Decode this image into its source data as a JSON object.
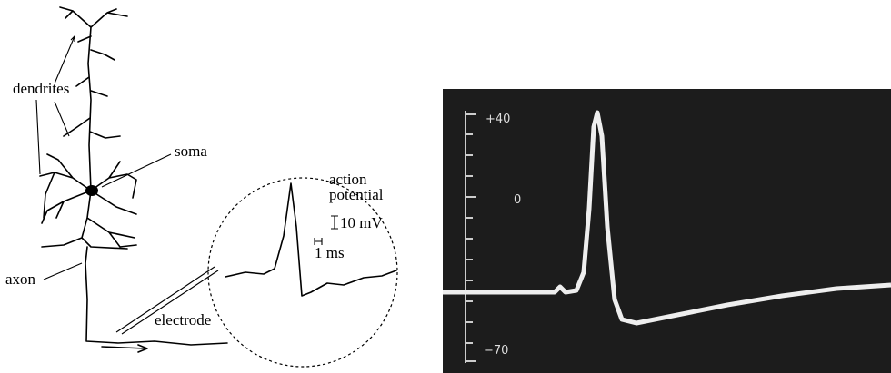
{
  "left_panel": {
    "labels": {
      "dendrites": "dendrites",
      "soma": "soma",
      "axon": "axon",
      "action": "action",
      "potential": "potential",
      "voltage_scale": "10 mV",
      "time_scale": "1 ms",
      "electrode": "electrode"
    }
  },
  "right_panel": {
    "axis_labels": [
      "+40",
      "0",
      "−70"
    ]
  }
}
